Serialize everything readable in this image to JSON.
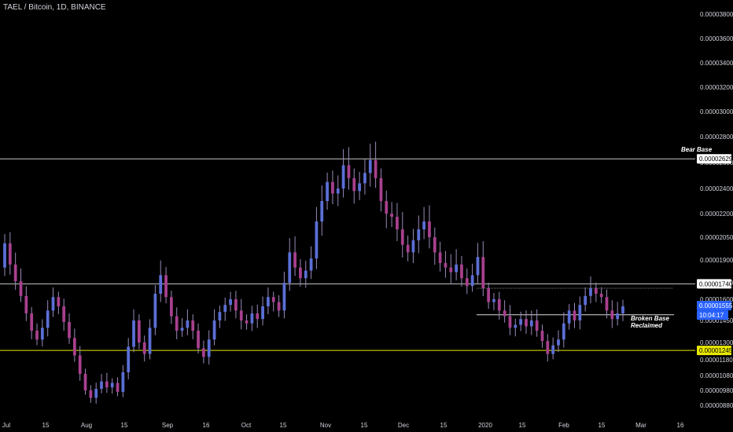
{
  "header": {
    "title": "TAEL / Bitcoin, 1D, BINANCE"
  },
  "colors": {
    "background": "#000000",
    "candle_up": "#5b6fd6",
    "candle_down": "#a8408e",
    "wick": "#9a8ab8",
    "hline": "#c8c8c8",
    "yellow_line": "#e8e800",
    "price_badge": "#2962ff",
    "text": "#d1d4dc"
  },
  "chart_data": {
    "type": "candlestick",
    "y_ticks": [
      "0.00003800",
      "0.00003600",
      "0.00003400",
      "0.00003200",
      "0.00003000",
      "0.00002800",
      "0.00002600",
      "0.00002400",
      "0.00002200",
      "0.00002050",
      "0.00001900",
      "0.00001750",
      "0.00001600",
      "0.00001450",
      "0.00001300",
      "0.00001180",
      "0.00001080",
      "0.00000980",
      "0.00000880"
    ],
    "x_ticks": [
      "Jul",
      "15",
      "Aug",
      "15",
      "Sep",
      "16",
      "Oct",
      "15",
      "Nov",
      "15",
      "Dec",
      "15",
      "2020",
      "15",
      "Feb",
      "15",
      "Mar",
      "16"
    ],
    "horizontal_lines": [
      {
        "name": "bear-base",
        "value": 2.629e-05,
        "label": "0.00002629",
        "color": "#c8c8c8"
      },
      {
        "name": "level-1740",
        "value": 1.74e-05,
        "label": "0.00001740",
        "color": "#c8c8c8"
      },
      {
        "name": "yellow-support",
        "value": 1.245e-05,
        "label": "0.00001245",
        "color": "#e8e800"
      }
    ],
    "last_price": {
      "value": 1.555e-05,
      "label": "0.00001555",
      "countdown": "10:04:17"
    },
    "annotations": [
      {
        "text": "Bear Base"
      },
      {
        "text": "Broken Base Reclaimed"
      }
    ],
    "price_path": [
      [
        1.85e-05,
        2.01e-05
      ],
      [
        2.01e-05,
        1.87e-05
      ],
      [
        1.87e-05,
        1.76e-05
      ],
      [
        1.76e-05,
        1.63e-05
      ],
      [
        1.63e-05,
        1.5e-05
      ],
      [
        1.5e-05,
        1.38e-05
      ],
      [
        1.38e-05,
        1.32e-05
      ],
      [
        1.32e-05,
        1.4e-05
      ],
      [
        1.4e-05,
        1.52e-05
      ],
      [
        1.52e-05,
        1.62e-05
      ],
      [
        1.62e-05,
        1.55e-05
      ],
      [
        1.55e-05,
        1.44e-05
      ],
      [
        1.44e-05,
        1.33e-05
      ],
      [
        1.33e-05,
        1.21e-05
      ],
      [
        1.21e-05,
        1.09e-05
      ],
      [
        1.09e-05,
        9.8e-06
      ],
      [
        9.8e-06,
        9.3e-06
      ],
      [
        9.3e-06,
        9.9e-06
      ],
      [
        9.9e-06,
        1.04e-05
      ],
      [
        1.04e-05,
        1e-05
      ],
      [
        1e-05,
        1.03e-05
      ],
      [
        1.03e-05,
        9.7e-06
      ],
      [
        9.7e-06,
        1.1e-05
      ],
      [
        1.1e-05,
        1.27e-05
      ],
      [
        1.27e-05,
        1.45e-05
      ],
      [
        1.45e-05,
        1.3e-05
      ],
      [
        1.3e-05,
        1.22e-05
      ],
      [
        1.22e-05,
        1.4e-05
      ],
      [
        1.4e-05,
        1.65e-05
      ],
      [
        1.65e-05,
        1.8e-05
      ],
      [
        1.8e-05,
        1.62e-05
      ],
      [
        1.62e-05,
        1.48e-05
      ],
      [
        1.48e-05,
        1.38e-05
      ],
      [
        1.38e-05,
        1.4e-05
      ],
      [
        1.4e-05,
        1.45e-05
      ],
      [
        1.45e-05,
        1.38e-05
      ],
      [
        1.38e-05,
        1.26e-05
      ],
      [
        1.26e-05,
        1.2e-05
      ],
      [
        1.2e-05,
        1.32e-05
      ],
      [
        1.32e-05,
        1.45e-05
      ],
      [
        1.45e-05,
        1.51e-05
      ],
      [
        1.51e-05,
        1.56e-05
      ],
      [
        1.56e-05,
        1.6e-05
      ],
      [
        1.6e-05,
        1.52e-05
      ],
      [
        1.52e-05,
        1.45e-05
      ],
      [
        1.45e-05,
        1.43e-05
      ],
      [
        1.43e-05,
        1.5e-05
      ],
      [
        1.5e-05,
        1.46e-05
      ],
      [
        1.46e-05,
        1.55e-05
      ],
      [
        1.55e-05,
        1.62e-05
      ],
      [
        1.62e-05,
        1.58e-05
      ],
      [
        1.58e-05,
        1.52e-05
      ],
      [
        1.52e-05,
        1.75e-05
      ],
      [
        1.75e-05,
        1.95e-05
      ],
      [
        1.95e-05,
        1.85e-05
      ],
      [
        1.85e-05,
        1.78e-05
      ],
      [
        1.78e-05,
        1.83e-05
      ],
      [
        1.83e-05,
        1.91e-05
      ],
      [
        1.91e-05,
        2.15e-05
      ],
      [
        2.15e-05,
        2.3e-05
      ],
      [
        2.3e-05,
        2.45e-05
      ],
      [
        2.45e-05,
        2.36e-05
      ],
      [
        2.36e-05,
        2.4e-05
      ],
      [
        2.4e-05,
        2.58e-05
      ],
      [
        2.58e-05,
        2.48e-05
      ],
      [
        2.48e-05,
        2.38e-05
      ],
      [
        2.38e-05,
        2.44e-05
      ],
      [
        2.44e-05,
        2.52e-05
      ],
      [
        2.52e-05,
        2.62e-05
      ],
      [
        2.62e-05,
        2.48e-05
      ],
      [
        2.48e-05,
        2.3e-05
      ],
      [
        2.3e-05,
        2.2e-05
      ],
      [
        2.2e-05,
        2.18e-05
      ],
      [
        2.18e-05,
        2.1e-05
      ],
      [
        2.1e-05,
        2e-05
      ],
      [
        2e-05,
        1.95e-05
      ],
      [
        1.95e-05,
        2.03e-05
      ],
      [
        2.03e-05,
        2.1e-05
      ],
      [
        2.1e-05,
        2.15e-05
      ],
      [
        2.15e-05,
        2.05e-05
      ],
      [
        2.05e-05,
        1.95e-05
      ],
      [
        1.95e-05,
        1.88e-05
      ],
      [
        1.88e-05,
        1.85e-05
      ],
      [
        1.85e-05,
        1.82e-05
      ],
      [
        1.82e-05,
        1.87e-05
      ],
      [
        1.87e-05,
        1.78e-05
      ],
      [
        1.78e-05,
        1.72e-05
      ],
      [
        1.72e-05,
        1.8e-05
      ],
      [
        1.8e-05,
        1.92e-05
      ],
      [
        1.92e-05,
        1.7e-05
      ],
      [
        1.7e-05,
        1.58e-05
      ],
      [
        1.58e-05,
        1.6e-05
      ],
      [
        1.6e-05,
        1.52e-05
      ],
      [
        1.52e-05,
        1.48e-05
      ],
      [
        1.48e-05,
        1.4e-05
      ],
      [
        1.4e-05,
        1.42e-05
      ],
      [
        1.42e-05,
        1.46e-05
      ],
      [
        1.46e-05,
        1.41e-05
      ],
      [
        1.41e-05,
        1.45e-05
      ],
      [
        1.45e-05,
        1.38e-05
      ],
      [
        1.38e-05,
        1.31e-05
      ],
      [
        1.31e-05,
        1.22e-05
      ],
      [
        1.22e-05,
        1.28e-05
      ],
      [
        1.28e-05,
        1.32e-05
      ],
      [
        1.32e-05,
        1.43e-05
      ],
      [
        1.43e-05,
        1.52e-05
      ],
      [
        1.52e-05,
        1.45e-05
      ],
      [
        1.45e-05,
        1.56e-05
      ],
      [
        1.56e-05,
        1.63e-05
      ],
      [
        1.63e-05,
        1.7e-05
      ],
      [
        1.7e-05,
        1.65e-05
      ],
      [
        1.65e-05,
        1.62e-05
      ],
      [
        1.62e-05,
        1.52e-05
      ],
      [
        1.52e-05,
        1.46e-05
      ],
      [
        1.46e-05,
        1.5e-05
      ],
      [
        1.5e-05,
        1.55e-05
      ]
    ]
  }
}
